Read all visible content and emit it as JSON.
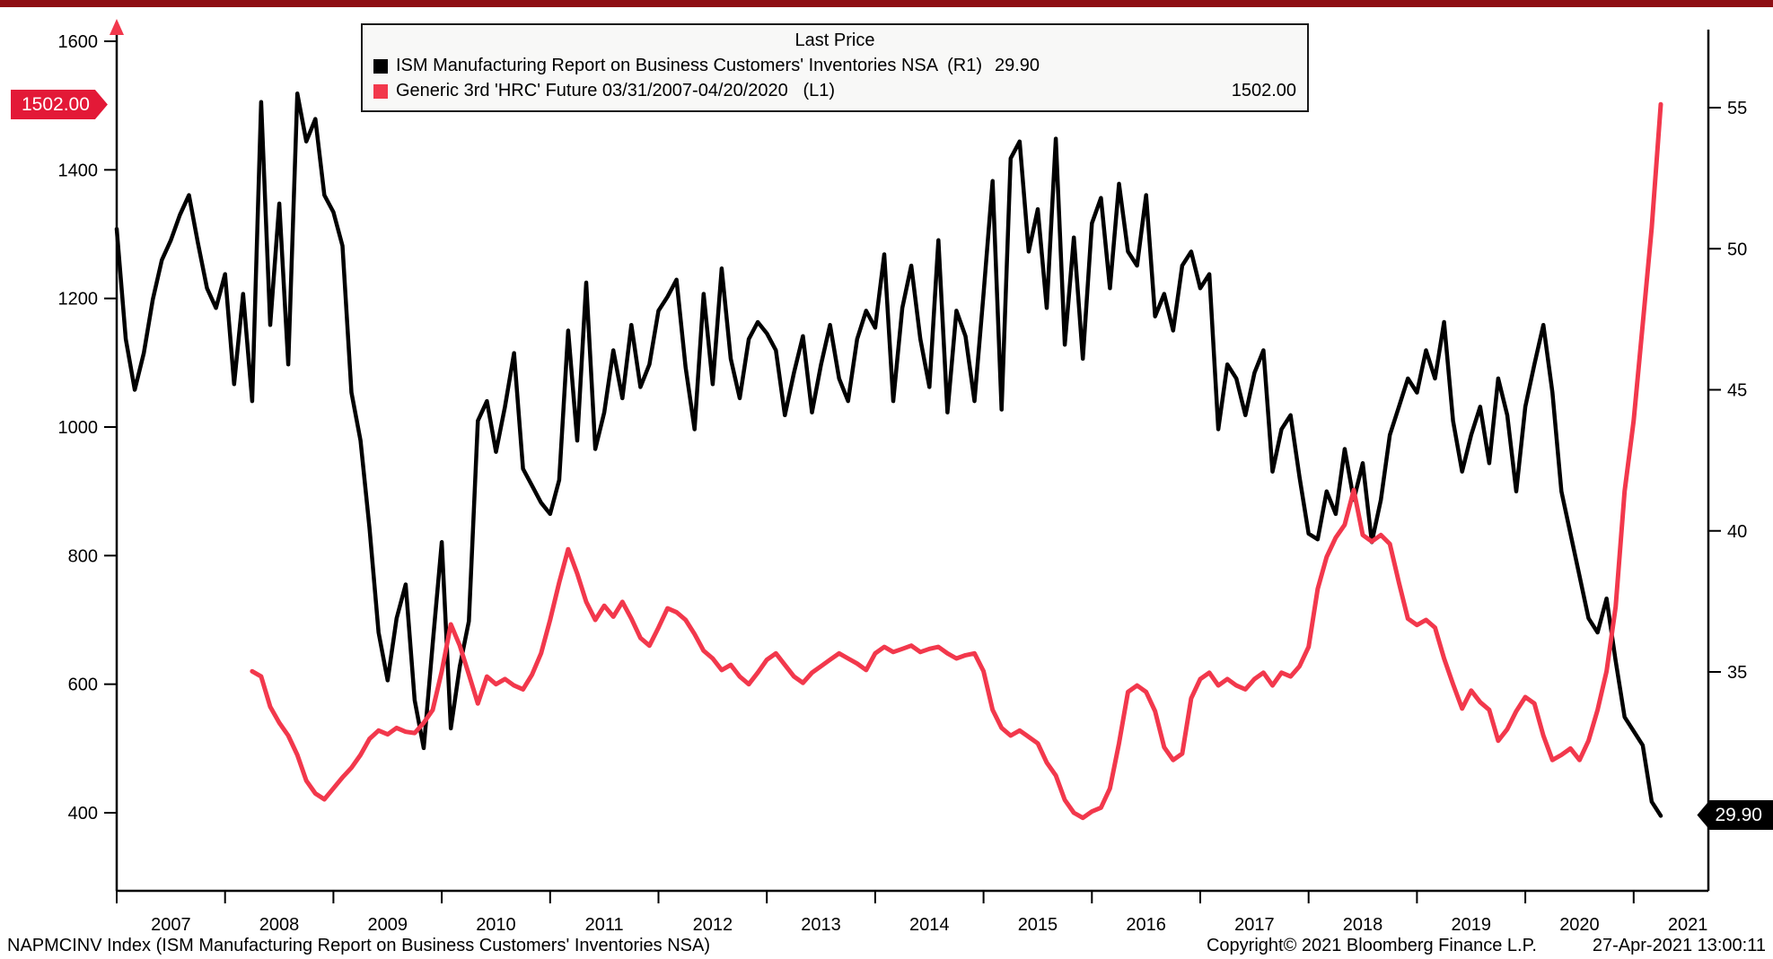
{
  "colors": {
    "top_bar": "#8e0e13",
    "ism_line": "#000000",
    "hrc_line": "#f2384c",
    "left_flag_bg": "#e31937",
    "right_flag_bg": "#000000",
    "legend_bg": "#f8f8f7"
  },
  "legend": {
    "title": "Last Price",
    "series": [
      {
        "label": "ISM Manufacturing Report on Business Customers' Inventories NSA  (R1)",
        "value": "29.90",
        "swatch": "#000000"
      },
      {
        "label": "Generic 3rd 'HRC' Future 03/31/2007-04/20/2020   (L1)",
        "value": "1502.00",
        "swatch": "#f2384c"
      }
    ]
  },
  "price_flags": {
    "left": {
      "text": "1502.00"
    },
    "right": {
      "text": "29.90"
    }
  },
  "status_bar": {
    "left": "NAPMCINV Index (ISM Manufacturing Report on Business Customers' Inventories NSA)",
    "copyright": "Copyright© 2021 Bloomberg Finance L.P.",
    "datetime": "27-Apr-2021 13:00:11"
  },
  "chart_data": {
    "type": "line",
    "title": "Last Price",
    "grid": false,
    "background": "#ffffff",
    "legend_position": "top-center",
    "x_axis": {
      "years": [
        2007,
        2008,
        2009,
        2010,
        2011,
        2012,
        2013,
        2014,
        2015,
        2016,
        2017,
        2018,
        2019,
        2020,
        2021
      ]
    },
    "left_axis": {
      "ticks": [
        400,
        600,
        800,
        1000,
        1200,
        1400,
        1600
      ],
      "belongs_to": "Generic 3rd 'HRC' Future",
      "last_price": 1502.0
    },
    "right_axis": {
      "ticks": [
        35,
        40,
        45,
        50,
        55
      ],
      "belongs_to": "ISM Customers' Inventories NSA",
      "last_price": 29.9
    },
    "series": [
      {
        "id": "ism",
        "name": "ISM Manufacturing Report on Business Customers' Inventories NSA",
        "scale": "R1",
        "axis": "R",
        "color": "#000000",
        "width": 4.5,
        "frequency": "monthly",
        "start": "2007-01",
        "values": [
          50.7,
          46.8,
          45.0,
          46.3,
          48.2,
          49.6,
          50.3,
          51.2,
          51.9,
          50.2,
          48.6,
          47.9,
          49.1,
          45.2,
          48.4,
          44.6,
          55.2,
          47.3,
          51.6,
          45.9,
          55.5,
          53.8,
          54.6,
          51.9,
          51.3,
          50.1,
          44.9,
          43.2,
          40.1,
          36.4,
          34.7,
          36.9,
          38.1,
          34.0,
          32.3,
          36.0,
          39.6,
          33.0,
          35.2,
          36.8,
          43.9,
          44.6,
          42.8,
          44.4,
          46.3,
          42.2,
          41.6,
          41.0,
          40.6,
          41.8,
          47.1,
          43.2,
          48.8,
          42.9,
          44.2,
          46.4,
          44.7,
          47.3,
          45.1,
          45.9,
          47.8,
          48.3,
          48.9,
          45.8,
          43.6,
          48.4,
          45.2,
          49.3,
          46.1,
          44.7,
          46.8,
          47.4,
          47.0,
          46.4,
          44.1,
          45.6,
          46.9,
          44.2,
          45.9,
          47.3,
          45.4,
          44.6,
          46.8,
          47.8,
          47.2,
          49.8,
          44.6,
          47.9,
          49.4,
          46.8,
          45.1,
          50.3,
          44.2,
          47.8,
          46.9,
          44.6,
          48.4,
          52.4,
          44.3,
          53.2,
          53.8,
          49.9,
          51.4,
          47.9,
          53.9,
          46.6,
          50.4,
          46.1,
          50.9,
          51.8,
          48.6,
          52.3,
          49.9,
          49.4,
          51.9,
          47.6,
          48.4,
          47.1,
          49.4,
          49.9,
          48.6,
          49.1,
          43.6,
          45.9,
          45.4,
          44.1,
          45.6,
          46.4,
          42.1,
          43.6,
          44.1,
          41.9,
          39.9,
          39.7,
          41.4,
          40.6,
          42.9,
          41.1,
          42.4,
          39.6,
          41.1,
          43.4,
          44.4,
          45.4,
          44.9,
          46.4,
          45.4,
          47.4,
          43.9,
          42.1,
          43.4,
          44.4,
          42.4,
          45.4,
          44.1,
          41.4,
          44.4,
          45.9,
          47.3,
          44.9,
          41.4,
          39.9,
          38.4,
          36.9,
          36.4,
          37.6,
          35.4,
          33.4,
          32.9,
          32.4,
          30.4,
          29.9
        ]
      },
      {
        "id": "hrc",
        "name": "Generic 3rd 'HRC' Future 03/31/2007-04/20/2020",
        "scale": "L1",
        "axis": "L",
        "color": "#f2384c",
        "width": 5,
        "frequency": "monthly",
        "start": "2008-04",
        "values": [
          620,
          612,
          565,
          540,
          520,
          490,
          450,
          430,
          421,
          438,
          455,
          470,
          490,
          515,
          528,
          522,
          532,
          526,
          524,
          540,
          560,
          620,
          693,
          660,
          615,
          570,
          612,
          600,
          608,
          598,
          592,
          615,
          648,
          700,
          758,
          810,
          772,
          728,
          700,
          722,
          705,
          728,
          702,
          672,
          660,
          688,
          718,
          712,
          700,
          678,
          652,
          640,
          622,
          630,
          612,
          600,
          618,
          638,
          648,
          630,
          612,
          602,
          618,
          628,
          638,
          648,
          640,
          632,
          622,
          648,
          658,
          650,
          655,
          660,
          650,
          655,
          658,
          648,
          640,
          645,
          648,
          620,
          560,
          532,
          520,
          528,
          518,
          508,
          478,
          458,
          420,
          400,
          392,
          402,
          408,
          438,
          508,
          588,
          598,
          588,
          558,
          502,
          482,
          492,
          578,
          608,
          618,
          598,
          608,
          598,
          592,
          608,
          618,
          598,
          618,
          612,
          628,
          658,
          748,
          798,
          828,
          848,
          902,
          832,
          822,
          832,
          818,
          758,
          702,
          692,
          700,
          688,
          640,
          600,
          562,
          590,
          572,
          560,
          512,
          530,
          558,
          580,
          570,
          520,
          482,
          490,
          500,
          482,
          512,
          560,
          620,
          720,
          900,
          1010,
          1160,
          1310,
          1502
        ]
      }
    ]
  }
}
